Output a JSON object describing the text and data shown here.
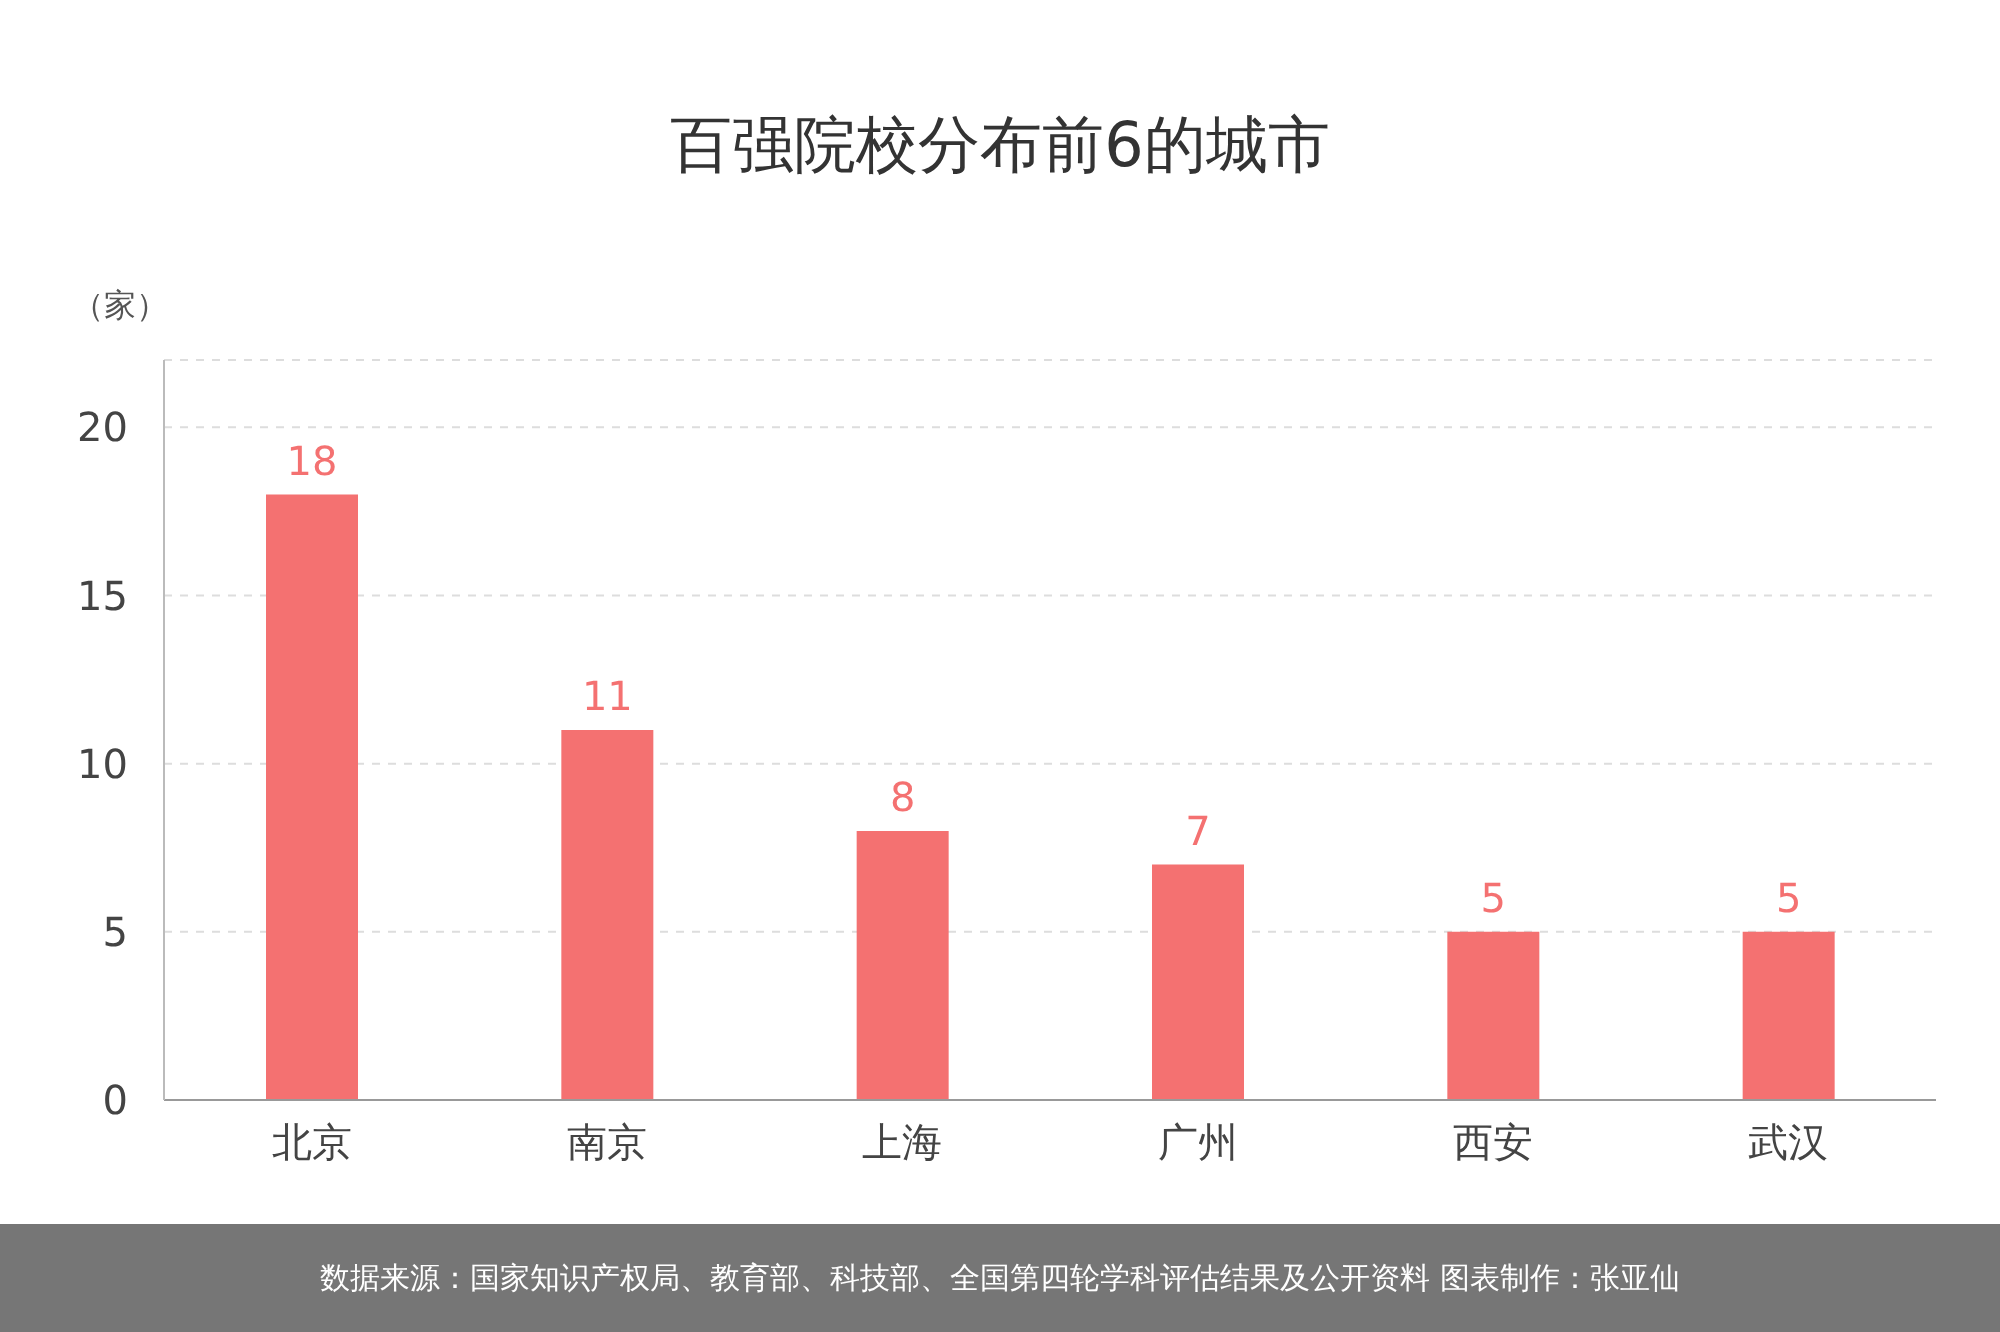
{
  "chart_data": {
    "type": "bar",
    "title": "百强院校分布前6的城市",
    "ylabel": "（家）",
    "categories": [
      "北京",
      "南京",
      "上海",
      "广州",
      "西安",
      "武汉"
    ],
    "values": [
      18,
      11,
      8,
      7,
      5,
      5
    ],
    "color": "#f47171",
    "ylim": [
      0,
      22
    ],
    "yticks": [
      0,
      5,
      10,
      15,
      20
    ],
    "grid": "y",
    "data_labels": true,
    "annotations": [
      "数据来源：国家知识产权局、教育部、科技部、全国第四轮学科评估结果及公开资料  图表制作：张亚仙"
    ]
  }
}
